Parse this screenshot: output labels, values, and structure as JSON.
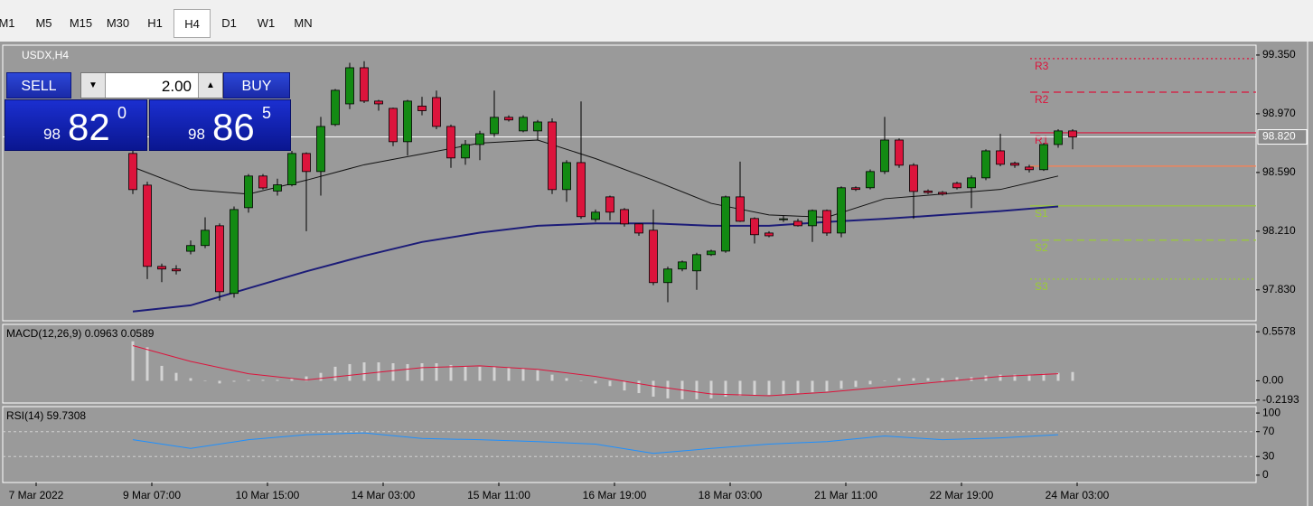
{
  "toolbar": {
    "timeframes": [
      "M1",
      "M5",
      "M15",
      "M30",
      "H1",
      "H4",
      "D1",
      "W1",
      "MN"
    ],
    "active": 5
  },
  "trade_panel": {
    "sell": "SELL",
    "lots": "2.00",
    "buy": "BUY",
    "bid": {
      "big": "98",
      "main": "82",
      "small": "0"
    },
    "ask": {
      "big": "98",
      "main": "86",
      "small": "5"
    }
  },
  "chart_data": [
    {
      "type": "candlestick",
      "title": "USDX,H4",
      "up_color": "#138a13",
      "down_color": "#dc143c",
      "ylim": [
        97.63,
        99.414
      ],
      "yticks": [
        {
          "value": 99.35,
          "label": "99.350"
        },
        {
          "value": 98.97,
          "label": "98.970"
        },
        {
          "value": 98.59,
          "label": "98.590"
        },
        {
          "value": 98.21,
          "label": "98.210"
        },
        {
          "value": 97.83,
          "label": "97.830"
        }
      ],
      "current_price": {
        "value": 98.82,
        "label": "98.820"
      },
      "x_labels": [
        "7 Mar 2022",
        "9 Mar 07:00",
        "10 Mar 15:00",
        "14 Mar 03:00",
        "15 Mar 11:00",
        "16 Mar 19:00",
        "18 Mar 03:00",
        "21 Mar 11:00",
        "22 Mar 19:00",
        "24 Mar 03:00"
      ],
      "candles": [
        [
          98.713,
          98.76,
          98.45,
          98.479
        ],
        [
          98.508,
          98.53,
          97.9,
          97.982
        ],
        [
          97.982,
          98.0,
          97.88,
          97.965
        ],
        [
          97.965,
          97.99,
          97.93,
          97.953
        ],
        [
          98.08,
          98.15,
          98.06,
          98.117
        ],
        [
          98.117,
          98.3,
          98.1,
          98.216
        ],
        [
          98.245,
          98.26,
          97.76,
          97.818
        ],
        [
          97.807,
          98.37,
          97.78,
          98.35
        ],
        [
          98.362,
          98.58,
          98.33,
          98.567
        ],
        [
          98.567,
          98.58,
          98.48,
          98.49
        ],
        [
          98.47,
          98.55,
          98.44,
          98.51
        ],
        [
          98.51,
          98.73,
          98.5,
          98.713
        ],
        [
          98.713,
          98.72,
          98.21,
          98.596
        ],
        [
          98.596,
          98.95,
          98.44,
          98.888
        ],
        [
          98.9,
          99.13,
          98.89,
          99.122
        ],
        [
          99.034,
          99.3,
          99.0,
          99.268
        ],
        [
          99.268,
          99.31,
          99.04,
          99.052
        ],
        [
          99.052,
          99.06,
          98.99,
          99.034
        ],
        [
          99.005,
          99.01,
          98.76,
          98.789
        ],
        [
          98.789,
          99.06,
          98.7,
          99.052
        ],
        [
          99.02,
          99.08,
          98.96,
          98.99
        ],
        [
          99.075,
          99.12,
          98.87,
          98.888
        ],
        [
          98.888,
          98.9,
          98.62,
          98.684
        ],
        [
          98.684,
          98.8,
          98.64,
          98.771
        ],
        [
          98.771,
          98.86,
          98.67,
          98.841
        ],
        [
          98.841,
          99.12,
          98.82,
          98.947
        ],
        [
          98.947,
          98.96,
          98.92,
          98.93
        ],
        [
          98.859,
          98.96,
          98.85,
          98.947
        ],
        [
          98.859,
          98.93,
          98.8,
          98.917
        ],
        [
          98.917,
          98.94,
          98.45,
          98.479
        ],
        [
          98.479,
          98.67,
          98.4,
          98.654
        ],
        [
          98.654,
          99.05,
          98.29,
          98.304
        ],
        [
          98.286,
          98.35,
          98.27,
          98.333
        ],
        [
          98.432,
          98.44,
          98.28,
          98.333
        ],
        [
          98.35,
          98.36,
          98.24,
          98.257
        ],
        [
          98.257,
          98.26,
          98.18,
          98.198
        ],
        [
          98.216,
          98.35,
          97.86,
          97.877
        ],
        [
          97.877,
          97.98,
          97.75,
          97.965
        ],
        [
          97.965,
          98.02,
          97.95,
          98.011
        ],
        [
          97.953,
          98.07,
          97.83,
          98.058
        ],
        [
          98.058,
          98.09,
          98.05,
          98.081
        ],
        [
          98.081,
          98.44,
          98.07,
          98.432
        ],
        [
          98.432,
          98.66,
          98.27,
          98.274
        ],
        [
          98.292,
          98.3,
          98.13,
          98.187
        ],
        [
          98.198,
          98.21,
          98.17,
          98.18
        ],
        [
          98.286,
          98.31,
          98.27,
          98.29
        ],
        [
          98.274,
          98.29,
          98.24,
          98.245
        ],
        [
          98.245,
          98.35,
          98.14,
          98.344
        ],
        [
          98.344,
          98.35,
          98.18,
          98.198
        ],
        [
          98.198,
          98.5,
          98.17,
          98.491
        ],
        [
          98.491,
          98.5,
          98.47,
          98.48
        ],
        [
          98.491,
          98.61,
          98.48,
          98.596
        ],
        [
          98.596,
          98.95,
          98.58,
          98.8
        ],
        [
          98.8,
          98.81,
          98.62,
          98.637
        ],
        [
          98.637,
          98.65,
          98.29,
          98.467
        ],
        [
          98.47,
          98.48,
          98.45,
          98.46
        ],
        [
          98.461,
          98.47,
          98.44,
          98.45
        ],
        [
          98.52,
          98.53,
          98.48,
          98.491
        ],
        [
          98.491,
          98.57,
          98.36,
          98.555
        ],
        [
          98.555,
          98.74,
          98.54,
          98.73
        ],
        [
          98.73,
          98.84,
          98.63,
          98.643
        ],
        [
          98.65,
          98.66,
          98.62,
          98.637
        ],
        [
          98.625,
          98.64,
          98.59,
          98.608
        ],
        [
          98.608,
          98.78,
          98.6,
          98.771
        ],
        [
          98.771,
          98.87,
          98.75,
          98.859
        ],
        [
          98.859,
          98.87,
          98.74,
          98.82
        ]
      ],
      "series": [
        {
          "color": "#1c1c78",
          "values": [
            97.69,
            97.73,
            97.84,
            97.95,
            98.05,
            98.14,
            98.2,
            98.245,
            98.26,
            98.26,
            98.245,
            98.245,
            98.27,
            98.29,
            98.315,
            98.34,
            98.37
          ]
        },
        {
          "color": "#111111",
          "values": [
            98.625,
            98.48,
            98.45,
            98.54,
            98.64,
            98.71,
            98.78,
            98.8,
            98.68,
            98.54,
            98.39,
            98.315,
            98.3,
            98.42,
            98.45,
            98.48,
            98.567
          ]
        }
      ],
      "levels": [
        {
          "name": "R3",
          "value": 99.327,
          "color": "#dc143c",
          "style": "dotted"
        },
        {
          "name": "R2",
          "value": 99.11,
          "color": "#dc143c",
          "style": "dashed"
        },
        {
          "name": "R1",
          "value": 98.847,
          "color": "#dc143c",
          "style": "solid"
        },
        {
          "value": 98.631,
          "color": "#ff7f50",
          "style": "solid"
        },
        {
          "name": "S1",
          "value": 98.374,
          "color": "#9acd32",
          "style": "solid"
        },
        {
          "name": "S2",
          "value": 98.152,
          "color": "#9acd32",
          "style": "dashed"
        },
        {
          "name": "S3",
          "value": 97.9,
          "color": "#9acd32",
          "style": "dotted"
        }
      ]
    },
    {
      "type": "macd",
      "title": "MACD(12,26,9) 0.0963 0.0589",
      "ylim": [
        -0.2525,
        0.642
      ],
      "yticks": [
        0.5578,
        {
          "value": 0,
          "label": "0.00"
        },
        -0.2193
      ],
      "bar_color": "#d3d3d3",
      "values": [
        0.45,
        0.38,
        0.17,
        0.09,
        0.03,
        0,
        -0.03,
        -0.01,
        0.01,
        0.01,
        0.01,
        0.03,
        0.05,
        0.09,
        0.16,
        0.19,
        0.21,
        0.21,
        0.2,
        0.19,
        0.2,
        0.2,
        0.18,
        0.16,
        0.16,
        0.16,
        0.15,
        0.14,
        0.12,
        0.07,
        0.03,
        0,
        -0.03,
        -0.06,
        -0.11,
        -0.14,
        -0.18,
        -0.2,
        -0.21,
        -0.21,
        -0.2,
        -0.18,
        -0.17,
        -0.17,
        -0.16,
        -0.15,
        -0.14,
        -0.13,
        -0.12,
        -0.09,
        -0.07,
        -0.04,
        0,
        0.03,
        0.03,
        0.03,
        0.03,
        0.04,
        0.04,
        0.06,
        0.07,
        0.07,
        0.07,
        0.08,
        0.09,
        0.1
      ],
      "series": [
        {
          "color": "#dc143c",
          "values": [
            0.4,
            0.22,
            0.08,
            0.01,
            0.08,
            0.15,
            0.17,
            0.13,
            0.05,
            -0.06,
            -0.15,
            -0.17,
            -0.13,
            -0.07,
            -0.01,
            0.05,
            0.08
          ]
        }
      ]
    },
    {
      "type": "line",
      "title": "RSI(14) 59.7308",
      "ylim": [
        -11.8,
        110.3
      ],
      "yticks": [
        100,
        70,
        30,
        0
      ],
      "series": [
        {
          "color": "#1e90ff",
          "values": [
            57,
            43,
            57,
            65,
            68,
            59,
            57,
            54,
            50,
            35,
            43,
            50,
            54,
            63,
            57,
            60,
            65
          ]
        }
      ]
    }
  ]
}
